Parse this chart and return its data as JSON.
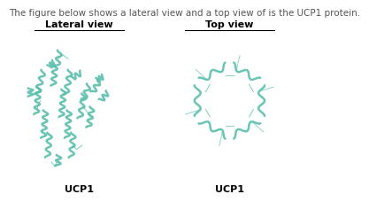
{
  "title_text": "The figure below shows a lateral view and a top view of is the UCP1 protein.",
  "title_fontsize": 7.5,
  "title_color": "#555555",
  "panel_left_title": "Lateral view",
  "panel_right_title": "Top view",
  "panel_label": "UCP1",
  "protein_color": "#5bbfad",
  "bg_color": "#ffffff",
  "box_color": "#333333",
  "label_fontsize": 8,
  "panel_title_fontsize": 8
}
